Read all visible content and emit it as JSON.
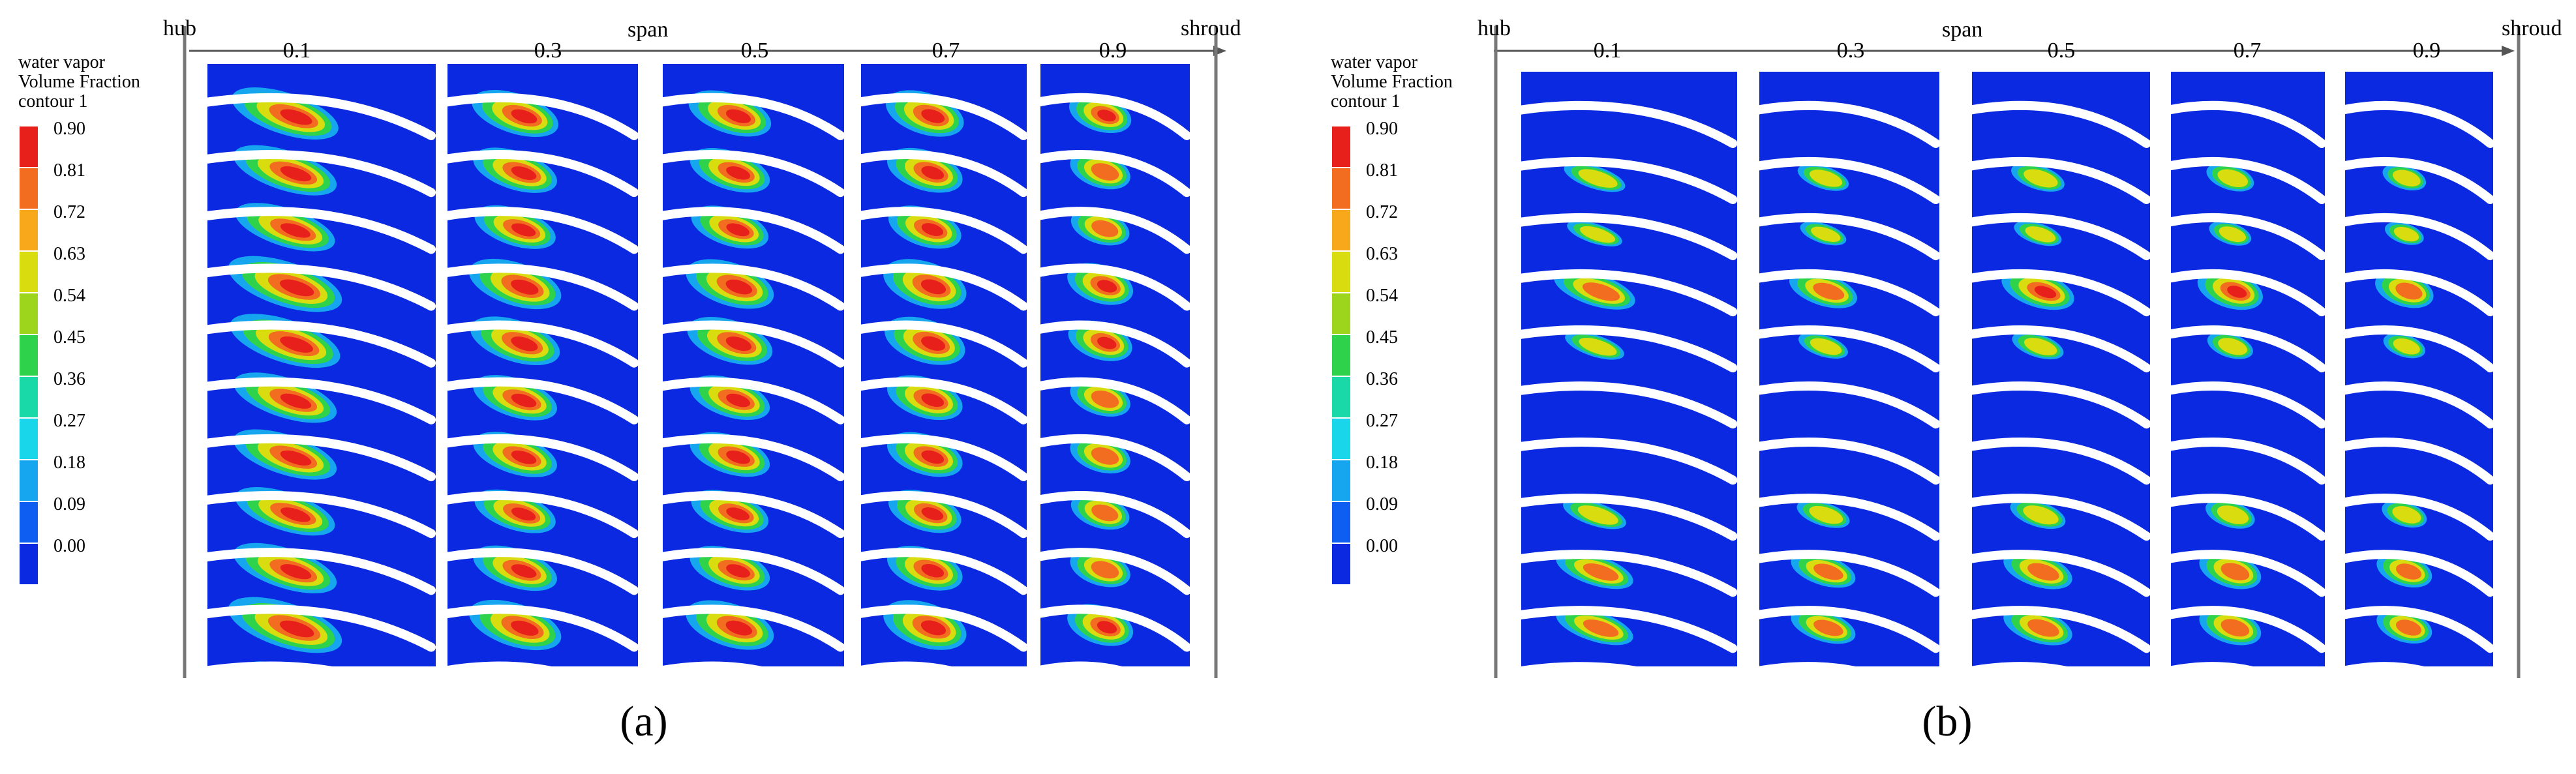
{
  "figures": [
    {
      "caption": "(a)",
      "axis": {
        "start_label": "hub",
        "end_label": "shroud",
        "title": "span",
        "ticks": [
          "0.1",
          "0.3",
          "0.5",
          "0.7",
          "0.9"
        ]
      },
      "legend": {
        "title_lines": [
          "water vapor",
          "Volume Fraction",
          "contour 1"
        ],
        "values": [
          "0.90",
          "0.81",
          "0.72",
          "0.63",
          "0.54",
          "0.45",
          "0.36",
          "0.27",
          "0.18",
          "0.09",
          "0.00"
        ]
      },
      "panel_intensity": [
        1.0,
        0.95,
        0.95,
        1.0,
        0.8
      ],
      "blade_intensity": [
        0.9,
        0.85,
        0.8,
        1.0,
        0.95,
        0.85,
        0.85,
        0.8,
        0.85,
        1.0,
        0.6
      ]
    },
    {
      "caption": "(b)",
      "axis": {
        "start_label": "hub",
        "end_label": "shroud",
        "title": "span",
        "ticks": [
          "0.1",
          "0.3",
          "0.5",
          "0.7",
          "0.9"
        ]
      },
      "legend": {
        "title_lines": [
          "water vapor",
          "Volume Fraction",
          "contour 1"
        ],
        "values": [
          "0.90",
          "0.81",
          "0.72",
          "0.63",
          "0.54",
          "0.45",
          "0.36",
          "0.27",
          "0.18",
          "0.09",
          "0.00"
        ]
      },
      "panel_intensity": [
        0.6,
        0.6,
        0.7,
        0.75,
        0.65
      ],
      "blade_intensity": [
        0.0,
        0.5,
        0.35,
        1.0,
        0.45,
        0.0,
        0.0,
        0.55,
        0.9,
        0.9,
        0.2
      ]
    }
  ],
  "colors": {
    "scale": [
      "#e8201c",
      "#f26d1f",
      "#f7a81b",
      "#d9dd0f",
      "#9dd41c",
      "#2ed34b",
      "#19d9a8",
      "#1ad6ea",
      "#16a6f0",
      "#0f5ef2",
      "#0a29e0"
    ],
    "background": "#0a29e0",
    "blade": "#ffffff",
    "axis": "#555555"
  }
}
